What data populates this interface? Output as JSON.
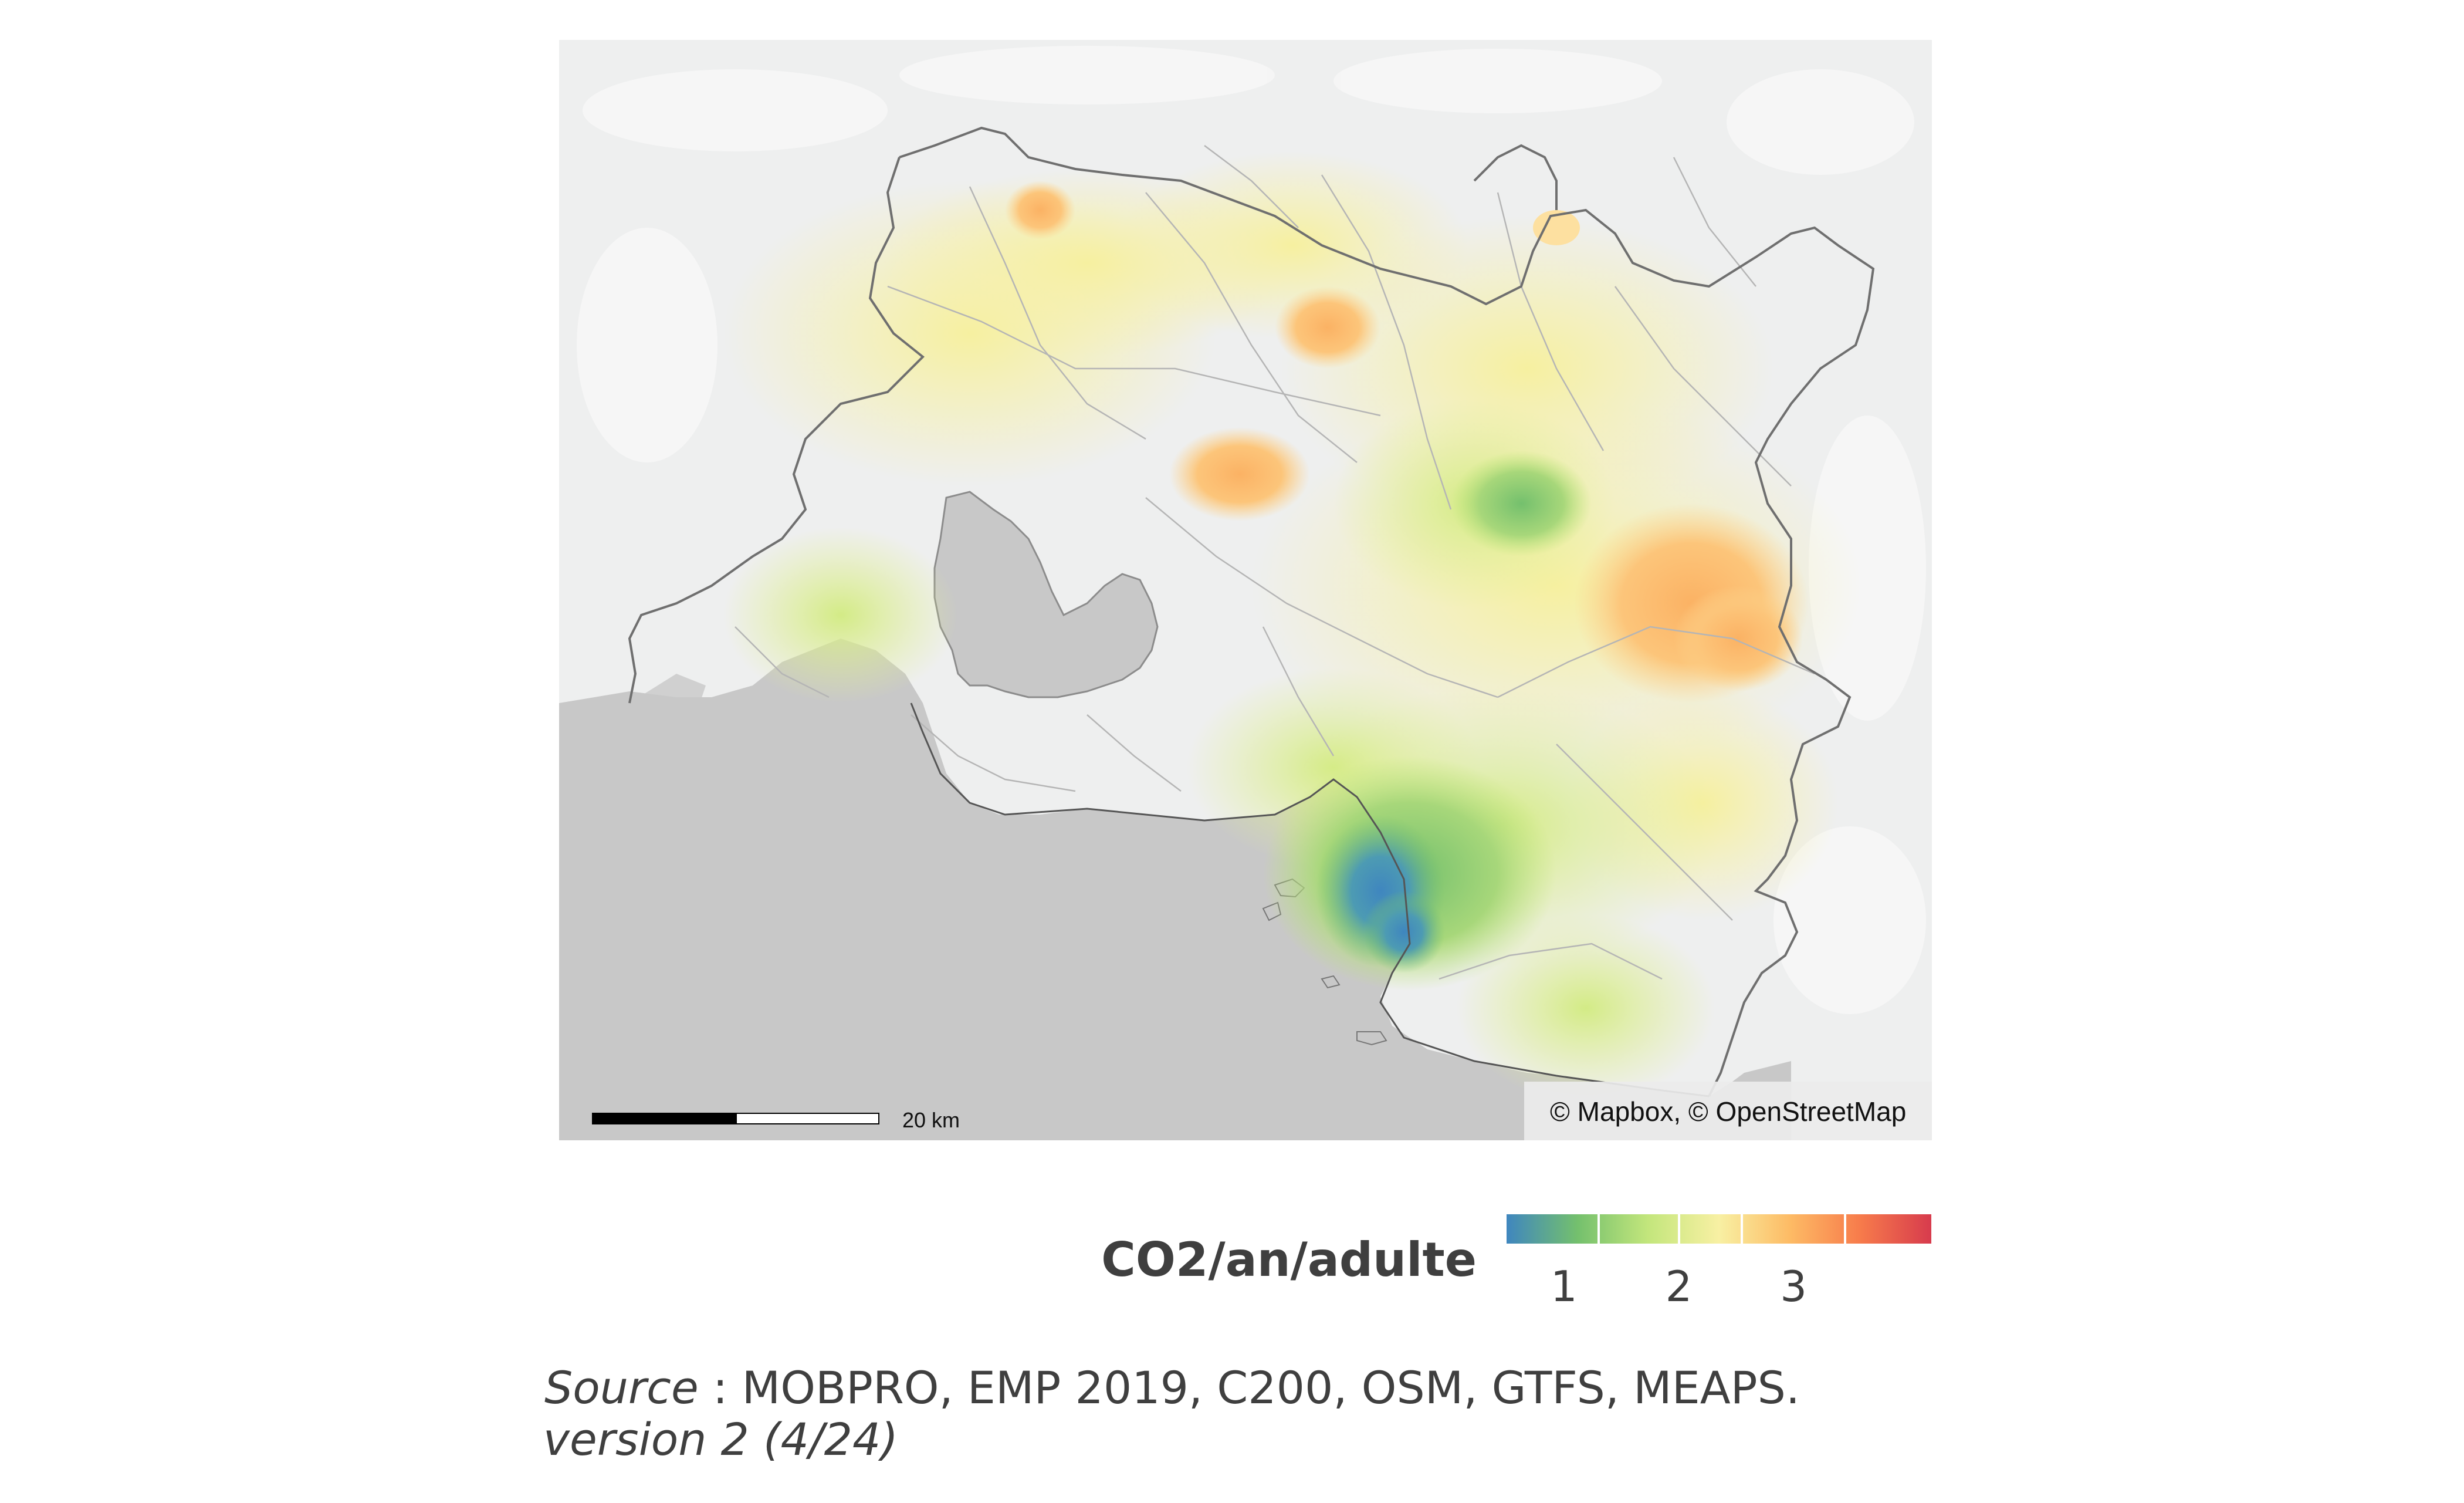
{
  "map": {
    "scale_label": "20 km",
    "attribution": "© Mapbox, © OpenStreetMap",
    "colors": {
      "background": "#eeefef",
      "sea": "#c8c8c8",
      "boundary": "#6f6f6f",
      "land_light": "#f6f6f6"
    }
  },
  "legend": {
    "title": "CO2/an/adulte",
    "ticks": [
      "1",
      "2",
      "3"
    ],
    "scale_min": 0.5,
    "scale_max": 4.2,
    "tick_values": [
      1,
      2,
      3
    ],
    "separator_values": [
      1.3,
      2.0,
      2.55,
      3.45
    ],
    "palette": [
      "#3f86bf",
      "#74c06d",
      "#c3e67c",
      "#f8f0a3",
      "#fdbb65",
      "#f77b4b",
      "#d73b4d"
    ]
  },
  "footer": {
    "source_label": "Source",
    "source_text": " : MOBPRO, EMP 2019, C200, OSM, GTFS, MEAPS.",
    "version": "version 2 (4/24)"
  }
}
